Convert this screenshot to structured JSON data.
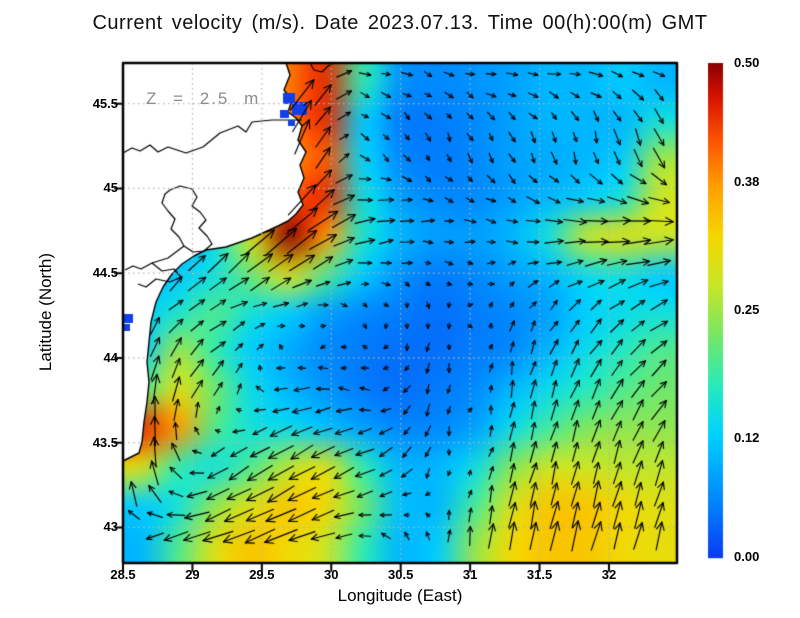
{
  "title": "Current velocity (m/s). Date 2023.07.13. Time 00(h):00(m) GMT",
  "annotation": {
    "depth_label": "Z = 2.5 m"
  },
  "axes": {
    "x": {
      "label": "Longitude (East)",
      "tick_labels": [
        "28.5",
        "29",
        "29.5",
        "30",
        "30.5",
        "31",
        "31.5",
        "32"
      ],
      "tick_values": [
        28.5,
        29,
        29.5,
        30,
        30.5,
        31,
        31.5,
        32
      ],
      "range": [
        28.5,
        32.49
      ]
    },
    "y": {
      "label": "Latitude (North)",
      "tick_labels": [
        "43",
        "43.5",
        "44",
        "44.5",
        "45",
        "45.5"
      ],
      "tick_values": [
        43,
        43.5,
        44,
        44.5,
        45,
        45.5
      ],
      "range": [
        42.79,
        45.74
      ]
    }
  },
  "colorbar": {
    "tick_labels": [
      "0.00",
      "0.12",
      "0.25",
      "0.38",
      "0.50"
    ],
    "tick_values": [
      0.0,
      0.12,
      0.25,
      0.38,
      0.5
    ],
    "min": 0.0,
    "max": 0.5
  },
  "chart_data": {
    "type": "heatmap",
    "title": "Current velocity (m/s). Date 2023.07.13. Time 00(h):00(m) GMT",
    "xlabel": "Longitude (East)",
    "ylabel": "Latitude (North)",
    "units": "m/s",
    "depth": "Z = 2.5 m",
    "xlim": [
      28.5,
      32.49
    ],
    "ylim": [
      42.79,
      45.74
    ],
    "zlim": [
      0.0,
      0.5
    ],
    "grid": true,
    "lon": [
      28.5,
      28.78,
      29.06,
      29.34,
      29.62,
      29.9,
      30.18,
      30.46,
      30.74,
      31.02,
      31.3,
      31.58,
      31.86,
      32.14,
      32.49
    ],
    "lat": [
      45.74,
      45.5,
      45.25,
      45.0,
      44.75,
      44.5,
      44.25,
      44.0,
      43.75,
      43.5,
      43.25,
      43.0,
      42.79
    ],
    "speed": [
      [
        0.3,
        0.3,
        0.3,
        0.35,
        0.4,
        0.45,
        0.18,
        0.07,
        0.06,
        0.07,
        0.08,
        0.1,
        0.1,
        0.12,
        0.1
      ],
      [
        0.3,
        0.3,
        0.3,
        0.35,
        0.4,
        0.45,
        0.12,
        0.05,
        0.05,
        0.06,
        0.08,
        0.1,
        0.1,
        0.1,
        0.15
      ],
      [
        0.2,
        0.2,
        0.25,
        0.3,
        0.38,
        0.42,
        0.13,
        0.06,
        0.05,
        0.06,
        0.08,
        0.09,
        0.1,
        0.12,
        0.25
      ],
      [
        0.15,
        0.15,
        0.2,
        0.28,
        0.42,
        0.45,
        0.15,
        0.08,
        0.06,
        0.06,
        0.08,
        0.1,
        0.12,
        0.15,
        0.28
      ],
      [
        0.1,
        0.1,
        0.15,
        0.3,
        0.5,
        0.38,
        0.16,
        0.1,
        0.08,
        0.08,
        0.1,
        0.15,
        0.27,
        0.3,
        0.28
      ],
      [
        0.1,
        0.12,
        0.15,
        0.22,
        0.3,
        0.2,
        0.12,
        0.07,
        0.05,
        0.06,
        0.08,
        0.1,
        0.14,
        0.15,
        0.12
      ],
      [
        0.12,
        0.16,
        0.2,
        0.15,
        0.12,
        0.08,
        0.06,
        0.05,
        0.04,
        0.05,
        0.06,
        0.08,
        0.12,
        0.14,
        0.15
      ],
      [
        0.12,
        0.25,
        0.18,
        0.12,
        0.09,
        0.06,
        0.05,
        0.04,
        0.04,
        0.05,
        0.06,
        0.1,
        0.14,
        0.17,
        0.2
      ],
      [
        0.2,
        0.3,
        0.22,
        0.14,
        0.1,
        0.07,
        0.05,
        0.04,
        0.05,
        0.06,
        0.1,
        0.14,
        0.17,
        0.2,
        0.22
      ],
      [
        0.45,
        0.38,
        0.2,
        0.15,
        0.14,
        0.11,
        0.08,
        0.06,
        0.06,
        0.08,
        0.14,
        0.19,
        0.23,
        0.24,
        0.24
      ],
      [
        0.3,
        0.18,
        0.15,
        0.2,
        0.27,
        0.3,
        0.18,
        0.1,
        0.1,
        0.14,
        0.23,
        0.28,
        0.28,
        0.27,
        0.27
      ],
      [
        0.12,
        0.15,
        0.24,
        0.3,
        0.34,
        0.32,
        0.22,
        0.11,
        0.1,
        0.19,
        0.29,
        0.34,
        0.34,
        0.32,
        0.3
      ],
      [
        0.1,
        0.2,
        0.3,
        0.34,
        0.32,
        0.28,
        0.18,
        0.1,
        0.12,
        0.24,
        0.32,
        0.34,
        0.34,
        0.32,
        0.31
      ]
    ],
    "quiver": {
      "lon": [
        28.6,
        29.14,
        29.69,
        30.23,
        30.77,
        31.31,
        31.86,
        32.4
      ],
      "lat": [
        45.7,
        45.23,
        44.77,
        44.3,
        43.83,
        43.37,
        42.9
      ],
      "u": [
        [
          0.0,
          0.2,
          0.28,
          0.1,
          0.08,
          0.1,
          0.12,
          0.1
        ],
        [
          0.0,
          0.1,
          0.15,
          0.06,
          0.02,
          0.04,
          0.0,
          0.08
        ],
        [
          0.05,
          0.2,
          0.35,
          0.2,
          0.1,
          0.1,
          0.25,
          0.28
        ],
        [
          0.1,
          0.15,
          0.12,
          0.03,
          0.0,
          0.03,
          0.1,
          0.15
        ],
        [
          0.02,
          0.12,
          -0.15,
          -0.08,
          -0.02,
          0.02,
          0.08,
          0.15
        ],
        [
          -0.02,
          -0.15,
          -0.25,
          -0.18,
          -0.02,
          0.05,
          0.05,
          0.08
        ],
        [
          -0.15,
          -0.3,
          -0.3,
          -0.1,
          0.0,
          0.05,
          0.08,
          0.06
        ]
      ],
      "v": [
        [
          0.0,
          0.25,
          0.35,
          -0.02,
          -0.03,
          0.0,
          -0.02,
          -0.05
        ],
        [
          0.0,
          0.3,
          0.4,
          -0.06,
          -0.07,
          -0.1,
          -0.12,
          -0.2
        ],
        [
          0.05,
          0.25,
          0.3,
          0.05,
          0.0,
          -0.02,
          0.0,
          0.02
        ],
        [
          0.12,
          0.08,
          0.02,
          -0.03,
          -0.05,
          0.06,
          0.1,
          0.08
        ],
        [
          0.3,
          0.15,
          -0.02,
          0.03,
          -0.12,
          0.15,
          0.18,
          0.15
        ],
        [
          0.4,
          -0.1,
          -0.15,
          -0.08,
          -0.1,
          0.18,
          0.2,
          0.22
        ],
        [
          -0.08,
          -0.1,
          -0.12,
          0.02,
          0.12,
          0.28,
          0.28,
          0.25
        ]
      ]
    },
    "colormap": [
      {
        "t": 0.0,
        "color": "#0a3cf0"
      },
      {
        "t": 0.125,
        "color": "#008cff"
      },
      {
        "t": 0.25,
        "color": "#00d2ff"
      },
      {
        "t": 0.35,
        "color": "#28ebb9"
      },
      {
        "t": 0.45,
        "color": "#78e664"
      },
      {
        "t": 0.55,
        "color": "#c8e628"
      },
      {
        "t": 0.65,
        "color": "#f5d700"
      },
      {
        "t": 0.75,
        "color": "#ffa000"
      },
      {
        "t": 0.85,
        "color": "#fa5000"
      },
      {
        "t": 0.93,
        "color": "#d71400"
      },
      {
        "t": 1.0,
        "color": "#8c0000"
      }
    ],
    "land_color": "#ffffff",
    "coast_color": "#000000",
    "gridline_color": "#b4b4b4",
    "arrow_color": "#000000"
  }
}
